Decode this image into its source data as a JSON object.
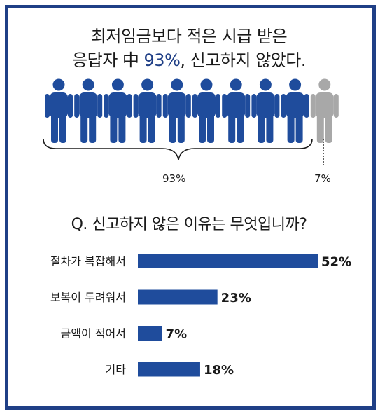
{
  "headline": {
    "line1": "최저임금보다 적은 시급 받은",
    "line2_prefix": "응답자 中 ",
    "line2_highlight": "93%",
    "line2_suffix": ", 신고하지 않았다."
  },
  "pictogram": {
    "total_icons": 10,
    "highlighted_icons": 9,
    "highlight_color": "#1f4c9c",
    "other_color": "#a8a8a8",
    "majority_label": "93%",
    "minority_label": "7%"
  },
  "question": "Q. 신고하지 않은 이유는 무엇입니까?",
  "chart_data": {
    "type": "bar",
    "orientation": "horizontal",
    "categories": [
      "절차가 복잡해서",
      "보복이 두려워서",
      "금액이 적어서",
      "기타"
    ],
    "values": [
      52,
      23,
      7,
      18
    ],
    "value_labels": [
      "52%",
      "23%",
      "7%",
      "18%"
    ],
    "bar_color": "#1f4c9c",
    "xlim": [
      0,
      52
    ]
  }
}
